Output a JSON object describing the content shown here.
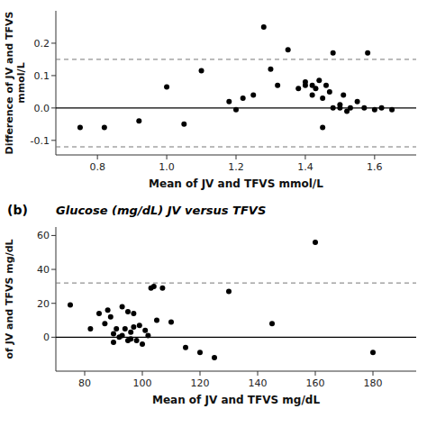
{
  "chart_data": [
    {
      "type": "scatter",
      "xlabel": "Mean of JV and TFVS mmol/L",
      "ylabel": "Difference of JV and TFVS\nmmol/L",
      "x": [
        0.75,
        0.82,
        0.92,
        1.0,
        1.05,
        1.1,
        1.18,
        1.2,
        1.22,
        1.25,
        1.28,
        1.3,
        1.32,
        1.35,
        1.38,
        1.4,
        1.4,
        1.42,
        1.42,
        1.43,
        1.44,
        1.45,
        1.45,
        1.46,
        1.47,
        1.48,
        1.48,
        1.5,
        1.5,
        1.51,
        1.52,
        1.53,
        1.55,
        1.57,
        1.58,
        1.6,
        1.62,
        1.65
      ],
      "values": [
        -0.06,
        -0.06,
        -0.04,
        0.065,
        -0.05,
        0.115,
        0.02,
        -0.005,
        0.03,
        0.04,
        0.25,
        0.12,
        0.07,
        0.18,
        0.06,
        0.07,
        0.08,
        0.07,
        0.04,
        0.06,
        0.085,
        -0.06,
        0.03,
        0.07,
        0.05,
        0.17,
        0.0,
        0.0,
        0.01,
        0.04,
        -0.01,
        0.0,
        0.02,
        0.0,
        0.17,
        -0.005,
        0.0,
        -0.005
      ],
      "color": "black",
      "lines": [
        {
          "value": 0.0,
          "color": "black",
          "line_style": "solid"
        },
        {
          "value": 0.15,
          "color": "#777777",
          "line_style": "dashed"
        },
        {
          "value": -0.12,
          "color": "#777777",
          "line_style": "dashed"
        }
      ],
      "xlim": [
        0.68,
        1.72
      ],
      "ylim": [
        -0.145,
        0.3
      ],
      "xticks": [
        0.8,
        {
          "value": 1.0,
          "label": "1.0"
        },
        1.2,
        1.4,
        1.6
      ],
      "yticks": [
        -0.1,
        {
          "value": 0.0,
          "label": "0.0"
        },
        0.1,
        0.2
      ],
      "grid": false
    },
    {
      "type": "scatter",
      "title": "Glucose (mg/dL) JV versus TFVS",
      "annotations": [
        "(b)"
      ],
      "xlabel": "Mean of JV and TFVS mg/dL",
      "ylabel": "of JV and TFVS mg/dL",
      "x": [
        75,
        82,
        85,
        87,
        88,
        89,
        90,
        90,
        91,
        92,
        93,
        93,
        94,
        95,
        95,
        96,
        96,
        97,
        97,
        98,
        99,
        100,
        101,
        102,
        103,
        104,
        105,
        107,
        110,
        115,
        120,
        125,
        130,
        145,
        160,
        180
      ],
      "values": [
        19,
        5,
        14,
        8,
        16,
        12,
        2,
        -3,
        5,
        0,
        1,
        18,
        5,
        -2,
        15,
        -1,
        3,
        14,
        6,
        -2,
        7,
        -4,
        4,
        1,
        29,
        30,
        10,
        29,
        9,
        -6,
        -9,
        -12,
        27,
        8,
        56,
        -9
      ],
      "color": "black",
      "lines": [
        {
          "value": 0.0,
          "color": "black",
          "line_style": "solid"
        },
        {
          "value": 32.0,
          "color": "#777777",
          "line_style": "dashed"
        }
      ],
      "xlim": [
        70,
        195
      ],
      "ylim": [
        -20,
        65
      ],
      "xticks": [
        80,
        100,
        120,
        140,
        160,
        180
      ],
      "yticks": [
        0,
        20,
        40,
        60
      ],
      "grid": false
    }
  ]
}
